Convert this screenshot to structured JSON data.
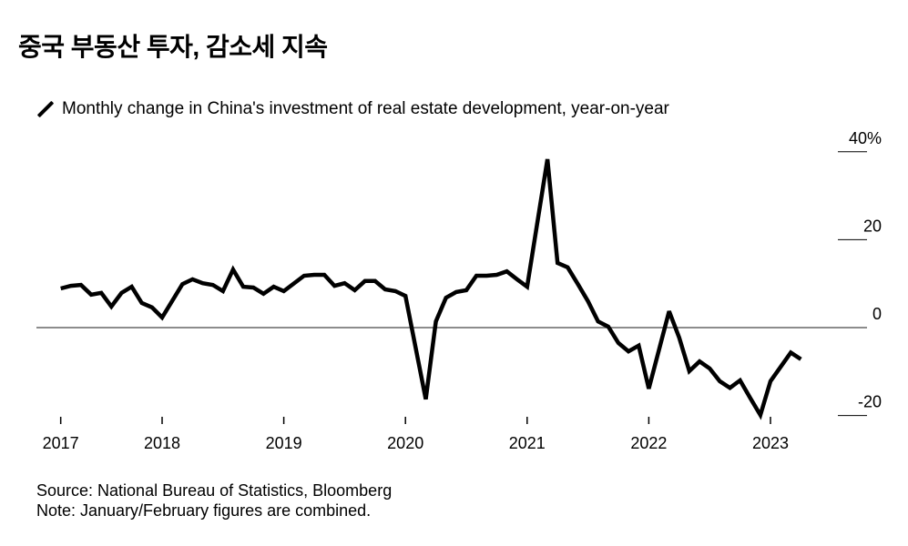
{
  "title": "중국 부동산 투자, 감소세 지속",
  "legend": {
    "icon": "diagonal-line-icon",
    "label": "Monthly change in China's investment of real estate development, year-on-year"
  },
  "footer": {
    "source": "Source: National Bureau of Statistics, Bloomberg",
    "note": "Note: January/February figures are combined."
  },
  "chart_data": {
    "type": "line",
    "title": "중국 부동산 투자, 감소세 지속",
    "series": [
      {
        "name": "Monthly change in China's investment of real estate development, year-on-year",
        "color": "#000000",
        "x": [
          "2017-02",
          "2017-03",
          "2017-04",
          "2017-05",
          "2017-06",
          "2017-07",
          "2017-08",
          "2017-09",
          "2017-10",
          "2017-11",
          "2017-12",
          "2018-02",
          "2018-03",
          "2018-04",
          "2018-05",
          "2018-06",
          "2018-07",
          "2018-08",
          "2018-09",
          "2018-10",
          "2018-11",
          "2018-12",
          "2019-02",
          "2019-03",
          "2019-04",
          "2019-05",
          "2019-06",
          "2019-07",
          "2019-08",
          "2019-09",
          "2019-10",
          "2019-11",
          "2019-12",
          "2020-02",
          "2020-03",
          "2020-04",
          "2020-05",
          "2020-06",
          "2020-07",
          "2020-08",
          "2020-09",
          "2020-10",
          "2020-11",
          "2020-12",
          "2021-02",
          "2021-03",
          "2021-04",
          "2021-05",
          "2021-06",
          "2021-07",
          "2021-08",
          "2021-09",
          "2021-10",
          "2021-11",
          "2021-12",
          "2022-02",
          "2022-03",
          "2022-04",
          "2022-05",
          "2022-06",
          "2022-07",
          "2022-08",
          "2022-09",
          "2022-10",
          "2022-11",
          "2022-12",
          "2023-02",
          "2023-03"
        ],
        "values": [
          8.9,
          9.5,
          9.7,
          7.5,
          7.9,
          4.8,
          7.9,
          9.3,
          5.6,
          4.6,
          2.3,
          9.9,
          11.0,
          10.1,
          9.7,
          8.3,
          13.2,
          9.3,
          9.1,
          7.7,
          9.3,
          8.3,
          11.8,
          12.0,
          12.0,
          9.5,
          10.1,
          8.5,
          10.6,
          10.6,
          8.7,
          8.3,
          7.2,
          -16.3,
          1.4,
          6.8,
          8.1,
          8.5,
          11.8,
          11.8,
          12.0,
          12.8,
          11.0,
          9.3,
          38.3,
          14.7,
          13.7,
          9.9,
          6.0,
          1.4,
          0.2,
          -3.5,
          -5.4,
          -4.1,
          -13.9,
          3.7,
          -2.3,
          -9.9,
          -7.7,
          -9.3,
          -12.2,
          -13.7,
          -12.0,
          -16.0,
          -19.9,
          -12.2,
          -5.7,
          -7.2
        ]
      }
    ],
    "xticks": [
      "2017",
      "2018",
      "2019",
      "2020",
      "2021",
      "2022",
      "2023"
    ],
    "yticks": [
      {
        "value": 40,
        "label": "40%"
      },
      {
        "value": 20,
        "label": "20"
      },
      {
        "value": 0,
        "label": "0"
      },
      {
        "value": -20,
        "label": "-20"
      }
    ],
    "ylim": [
      -20,
      40
    ],
    "xlabel": "",
    "ylabel": "",
    "grid": false,
    "zero_line_color": "#666666",
    "axis_position_y": "right",
    "legend_position": "top-left"
  }
}
